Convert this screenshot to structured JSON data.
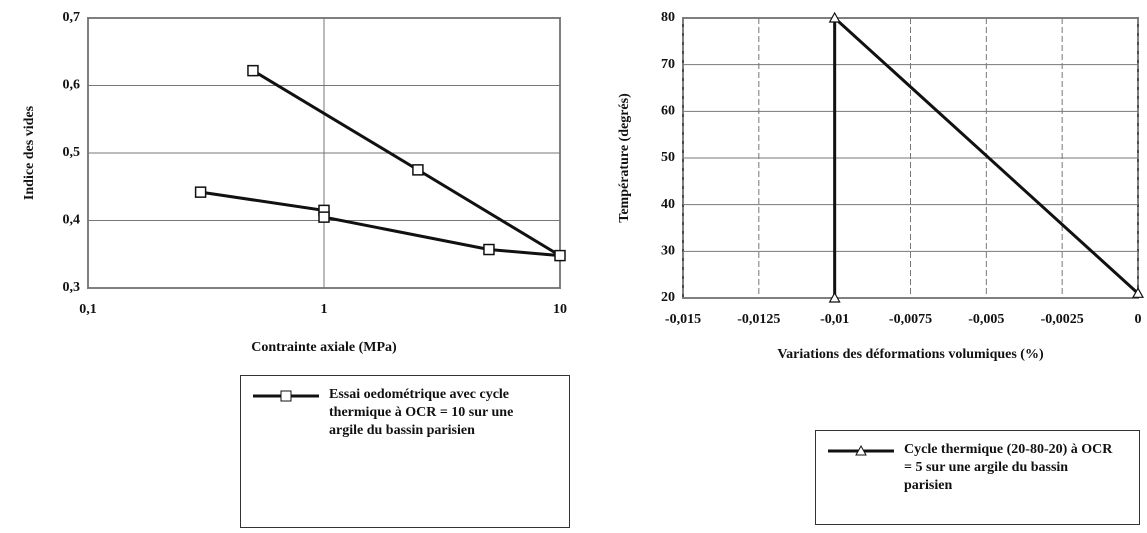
{
  "chart_data": [
    {
      "type": "line",
      "x_label": "Contrainte axiale (MPa)",
      "y_label": "Indice des vides",
      "xscale": "log",
      "xlim": [
        0.1,
        10
      ],
      "ylim": [
        0.3,
        0.7
      ],
      "xticks": [
        {
          "value": 0.1,
          "label": "0,1"
        },
        1,
        10
      ],
      "yticks": [
        {
          "value": 0.3,
          "label": "0,3"
        },
        {
          "value": 0.4,
          "label": "0,4"
        },
        {
          "value": 0.5,
          "label": "0,5"
        },
        {
          "value": 0.6,
          "label": "0,6"
        },
        {
          "value": 0.7,
          "label": "0,7"
        }
      ],
      "grid": true,
      "legend": "lower right",
      "series": [
        {
          "name": "Essai oedométrique avec cycle thermique à OCR = 10 sur une argile du bassin parisien",
          "color": "#111111",
          "marker": "square",
          "x": [
            0.3,
            1,
            1,
            5,
            10,
            2.5,
            0.5
          ],
          "values": [
            0.442,
            0.415,
            0.405,
            0.357,
            0.348,
            0.475,
            0.622
          ]
        }
      ]
    },
    {
      "type": "line",
      "x_label": "Variations des déformations volumiques (%)",
      "y_label": "Température (degrés)",
      "xscale": "linear",
      "xlim": [
        -0.015,
        0
      ],
      "ylim": [
        20,
        80
      ],
      "xticks": [
        {
          "value": -0.015,
          "label": "-0,015"
        },
        {
          "value": -0.0125,
          "label": "-0,0125"
        },
        {
          "value": -0.01,
          "label": "-0,01"
        },
        {
          "value": -0.0075,
          "label": "-0,0075"
        },
        {
          "value": -0.005,
          "label": "-0,005"
        },
        {
          "value": -0.0025,
          "label": "-0,0025"
        },
        0
      ],
      "yticks": [
        20,
        30,
        40,
        50,
        60,
        70,
        80
      ],
      "grid": true,
      "legend": "lower right",
      "series": [
        {
          "name": "Cycle thermique (20-80-20) à OCR = 5 sur une argile du bassin parisien",
          "color": "#111111",
          "marker": "triangle",
          "x": [
            0,
            -0.01,
            -0.01
          ],
          "values": [
            21,
            80,
            20
          ]
        }
      ]
    }
  ]
}
